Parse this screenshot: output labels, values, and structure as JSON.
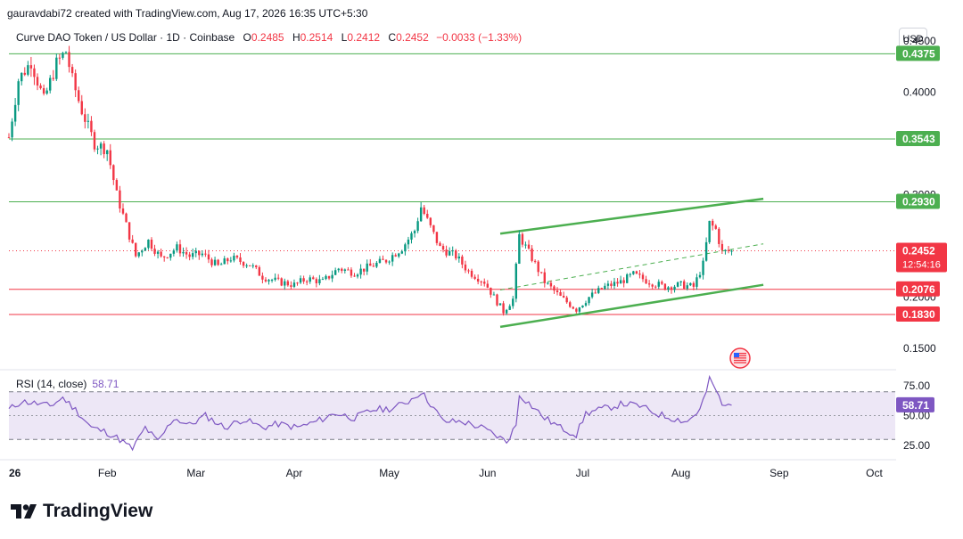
{
  "header": {
    "credit": "gauravdabi72 created with TradingView.com, Aug 17, 2026 16:35 UTC+5:30",
    "symbol": "Curve DAO Token / US Dollar · 1D · Coinbase",
    "open_label": "O",
    "open": "0.2485",
    "high_label": "H",
    "high": "0.2514",
    "low_label": "L",
    "low": "0.2412",
    "close_label": "C",
    "close": "0.2452",
    "change": "−0.0033 (−1.33%)",
    "currency_button": "USD"
  },
  "brand": {
    "name": "TradingView",
    "icon": "tradingview-logo-icon"
  },
  "colors": {
    "up": "#089981",
    "down": "#f23645",
    "support_line": "#4caf50",
    "resistance_line": "#f23645",
    "rsi": "#7e57c2",
    "rsi_band": "#ede7f6"
  },
  "chart_data": [
    {
      "type": "candlestick",
      "title": "Curve DAO Token / US Dollar · 1D · Coinbase",
      "ylim": [
        0.12,
        0.475
      ],
      "x_tick_labels": [
        "26",
        "Feb",
        "Mar",
        "Apr",
        "May",
        "Jun",
        "Jul",
        "Aug",
        "Sep",
        "Oct"
      ],
      "y_tick_labels": [
        "0.4500",
        "0.4000",
        "0.3000",
        "0.2000",
        "0.1500"
      ],
      "price_levels": [
        {
          "label": "0.4375",
          "value": 0.4375,
          "style": "green"
        },
        {
          "label": "0.3543",
          "value": 0.3543,
          "style": "green"
        },
        {
          "label": "0.2930",
          "value": 0.293,
          "style": "green"
        },
        {
          "label": "0.2076",
          "value": 0.2076,
          "style": "red"
        },
        {
          "label": "0.1830",
          "value": 0.183,
          "style": "red"
        }
      ],
      "last_price": {
        "label": "0.2452",
        "countdown": "12:54:16",
        "value": 0.2452
      },
      "channel": {
        "upper": [
          [
            "Jun 5",
            0.262
          ],
          [
            "Aug 27",
            0.296
          ]
        ],
        "middle": [
          [
            "Jun 5",
            0.207
          ],
          [
            "Aug 27",
            0.252
          ]
        ],
        "lower": [
          [
            "Jun 5",
            0.171
          ],
          [
            "Aug 27",
            0.212
          ]
        ],
        "horizontal_resistance": [
          [
            "May 11",
            0.293
          ],
          [
            "Aug 27",
            0.293
          ]
        ]
      },
      "close_path": [
        [
          "Jan 1",
          0.356
        ],
        [
          "Jan 4",
          0.412
        ],
        [
          "Jan 8",
          0.43
        ],
        [
          "Jan 12",
          0.392
        ],
        [
          "Jan 16",
          0.428
        ],
        [
          "Jan 19",
          0.44
        ],
        [
          "Jan 21",
          0.412
        ],
        [
          "Jan 24",
          0.382
        ],
        [
          "Jan 28",
          0.35
        ],
        [
          "Feb 1",
          0.344
        ],
        [
          "Feb 4",
          0.3
        ],
        [
          "Feb 7",
          0.27
        ],
        [
          "Feb 10",
          0.24
        ],
        [
          "Feb 14",
          0.255
        ],
        [
          "Feb 18",
          0.238
        ],
        [
          "Feb 23",
          0.248
        ],
        [
          "Feb 27",
          0.24
        ],
        [
          "Mar 3",
          0.242
        ],
        [
          "Mar 8",
          0.23
        ],
        [
          "Mar 12",
          0.238
        ],
        [
          "Mar 18",
          0.232
        ],
        [
          "Mar 22",
          0.22
        ],
        [
          "Mar 27",
          0.215
        ],
        [
          "Apr 1",
          0.212
        ],
        [
          "Apr 5",
          0.218
        ],
        [
          "Apr 10",
          0.215
        ],
        [
          "Apr 15",
          0.228
        ],
        [
          "Apr 20",
          0.224
        ],
        [
          "Apr 25",
          0.23
        ],
        [
          "Apr 30",
          0.236
        ],
        [
          "May 5",
          0.248
        ],
        [
          "May 9",
          0.265
        ],
        [
          "May 11",
          0.288
        ],
        [
          "May 14",
          0.268
        ],
        [
          "May 17",
          0.248
        ],
        [
          "May 22",
          0.24
        ],
        [
          "May 26",
          0.225
        ],
        [
          "May 31",
          0.215
        ],
        [
          "Jun 3",
          0.2
        ],
        [
          "Jun 6",
          0.186
        ],
        [
          "Jun 9",
          0.198
        ],
        [
          "Jun 11",
          0.26
        ],
        [
          "Jun 15",
          0.238
        ],
        [
          "Jun 19",
          0.215
        ],
        [
          "Jun 24",
          0.2
        ],
        [
          "Jun 29",
          0.188
        ],
        [
          "Jul 3",
          0.2
        ],
        [
          "Jul 8",
          0.21
        ],
        [
          "Jul 13",
          0.215
        ],
        [
          "Jul 17",
          0.222
        ],
        [
          "Jul 22",
          0.215
        ],
        [
          "Jul 27",
          0.21
        ],
        [
          "Aug 1",
          0.212
        ],
        [
          "Aug 5",
          0.21
        ],
        [
          "Aug 8",
          0.232
        ],
        [
          "Aug 10",
          0.272
        ],
        [
          "Aug 12",
          0.266
        ],
        [
          "Aug 14",
          0.244
        ],
        [
          "Aug 17",
          0.2452
        ]
      ]
    },
    {
      "type": "line",
      "title": "RSI (14, close)",
      "value_label": "58.71",
      "ylim": [
        10,
        90
      ],
      "y_tick_labels": [
        "75.00",
        "50.00",
        "25.00"
      ],
      "band": [
        30,
        70
      ],
      "midline": 50,
      "current": 58.71,
      "path": [
        [
          "Jan 1",
          55
        ],
        [
          "Jan 5",
          62
        ],
        [
          "Jan 10",
          60
        ],
        [
          "Jan 14",
          58
        ],
        [
          "Jan 18",
          65
        ],
        [
          "Jan 22",
          55
        ],
        [
          "Jan 27",
          40
        ],
        [
          "Feb 1",
          36
        ],
        [
          "Feb 5",
          30
        ],
        [
          "Feb 9",
          22
        ],
        [
          "Feb 13",
          40
        ],
        [
          "Feb 17",
          28
        ],
        [
          "Feb 22",
          48
        ],
        [
          "Feb 27",
          42
        ],
        [
          "Mar 4",
          50
        ],
        [
          "Mar 10",
          40
        ],
        [
          "Mar 16",
          47
        ],
        [
          "Mar 22",
          40
        ],
        [
          "Mar 27",
          43
        ],
        [
          "Apr 2",
          40
        ],
        [
          "Apr 8",
          45
        ],
        [
          "Apr 14",
          52
        ],
        [
          "Apr 20",
          48
        ],
        [
          "Apr 26",
          55
        ],
        [
          "May 2",
          56
        ],
        [
          "May 7",
          62
        ],
        [
          "May 11",
          70
        ],
        [
          "May 14",
          60
        ],
        [
          "May 18",
          45
        ],
        [
          "May 24",
          45
        ],
        [
          "May 30",
          40
        ],
        [
          "Jun 4",
          33
        ],
        [
          "Jun 7",
          28
        ],
        [
          "Jun 10",
          42
        ],
        [
          "Jun 11",
          68
        ],
        [
          "Jun 15",
          58
        ],
        [
          "Jun 19",
          48
        ],
        [
          "Jun 24",
          40
        ],
        [
          "Jun 29",
          34
        ],
        [
          "Jul 2",
          52
        ],
        [
          "Jul 8",
          56
        ],
        [
          "Jul 14",
          60
        ],
        [
          "Jul 19",
          58
        ],
        [
          "Jul 24",
          52
        ],
        [
          "Jul 29",
          48
        ],
        [
          "Aug 3",
          45
        ],
        [
          "Aug 7",
          55
        ],
        [
          "Aug 9",
          70
        ],
        [
          "Aug 10",
          80
        ],
        [
          "Aug 12",
          72
        ],
        [
          "Aug 14",
          58
        ],
        [
          "Aug 17",
          58.71
        ]
      ]
    }
  ]
}
